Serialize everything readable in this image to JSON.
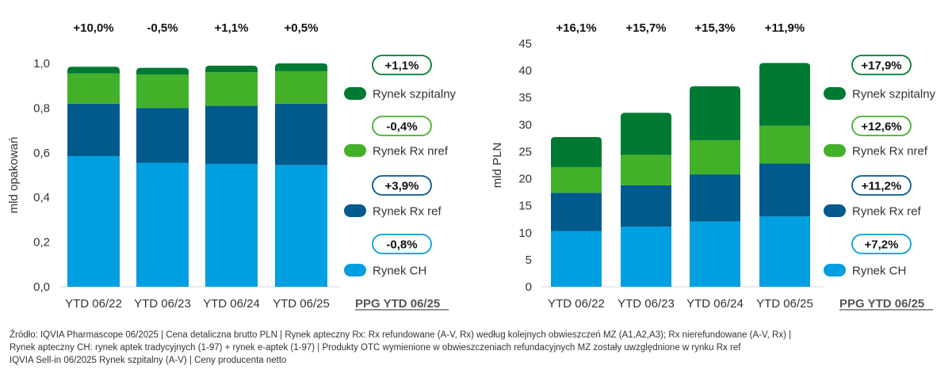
{
  "colors": {
    "ch": "#009fdf",
    "rx_ref": "#005a8c",
    "rx_nref": "#43b02a",
    "hospital": "#007a33",
    "axis_text": "#333333",
    "grid": "#d9d9d9"
  },
  "chart_data": [
    {
      "type": "bar",
      "stacked": true,
      "title": "",
      "xlabel": "",
      "ylabel": "mld opakowań",
      "ylim": [
        0,
        1.0
      ],
      "yticks": [
        0,
        0.2,
        0.4,
        0.6,
        0.8,
        1.0
      ],
      "ytick_labels": [
        "0,0",
        "0,2",
        "0,4",
        "0,6",
        "0,8",
        "1,0"
      ],
      "categories": [
        "YTD 06/22",
        "YTD 06/23",
        "YTD 06/24",
        "YTD 06/25"
      ],
      "top_labels": [
        "+10,0%",
        "-0,5%",
        "+1,1%",
        "+0,5%"
      ],
      "series": [
        {
          "name": "Rynek CH",
          "values": [
            0.585,
            0.555,
            0.55,
            0.545
          ]
        },
        {
          "name": "Rynek Rx ref",
          "values": [
            0.235,
            0.245,
            0.26,
            0.275
          ]
        },
        {
          "name": "Rynek Rx nref",
          "values": [
            0.135,
            0.15,
            0.15,
            0.145
          ]
        },
        {
          "name": "Rynek szpitalny",
          "values": [
            0.03,
            0.03,
            0.03,
            0.035
          ]
        }
      ],
      "legend": {
        "placement": "right",
        "title": "PPG YTD 06/25",
        "growth": [
          "+1,1%",
          "-0,4%",
          "+3,9%",
          "-0,8%"
        ]
      }
    },
    {
      "type": "bar",
      "stacked": true,
      "title": "",
      "xlabel": "",
      "ylabel": "mld PLN",
      "ylim": [
        0,
        45
      ],
      "yticks": [
        0,
        5,
        10,
        15,
        20,
        25,
        30,
        35,
        40,
        45
      ],
      "ytick_labels": [
        "0",
        "5",
        "10",
        "15",
        "20",
        "25",
        "30",
        "35",
        "40",
        "45"
      ],
      "categories": [
        "YTD 06/22",
        "YTD 06/23",
        "YTD 06/24",
        "YTD 06/25"
      ],
      "top_labels": [
        "+16,1%",
        "+15,7%",
        "+15,3%",
        "+11,9%"
      ],
      "series": [
        {
          "name": "Rynek CH",
          "values": [
            10.3,
            11.1,
            12.1,
            13.0
          ]
        },
        {
          "name": "Rynek Rx ref",
          "values": [
            7.1,
            7.7,
            8.7,
            9.8
          ]
        },
        {
          "name": "Rynek Rx nref",
          "values": [
            4.7,
            5.6,
            6.3,
            7.0
          ]
        },
        {
          "name": "Rynek szpitalny",
          "values": [
            5.6,
            7.8,
            10.0,
            11.6
          ]
        }
      ],
      "legend": {
        "placement": "right",
        "title": "PPG YTD 06/25",
        "growth": [
          "+17,9%",
          "+12,6%",
          "+11,2%",
          "+7,2%"
        ]
      }
    }
  ],
  "source": {
    "line1": "Źródło: IQVIA Pharmascope 06/2025 | Cena detaliczna brutto PLN | Rynek apteczny Rx: Rx refundowane  (A-V, Rx) według kolejnych obwieszczeń MZ (A1,A2,A3); Rx nierefundowane (A-V, Rx) |",
    "line2": "Rynek apteczny CH: rynek aptek tradycyjnych (1-97) + rynek e-aptek (1-97) | Produkty OTC wymienione w obwieszczeniach refundacyjnych MZ zostały uwzględnione w rynku Rx ref",
    "line3": "IQVIA Sell-in 06/2025 Rynek szpitalny (A-V) | Ceny producenta netto"
  }
}
